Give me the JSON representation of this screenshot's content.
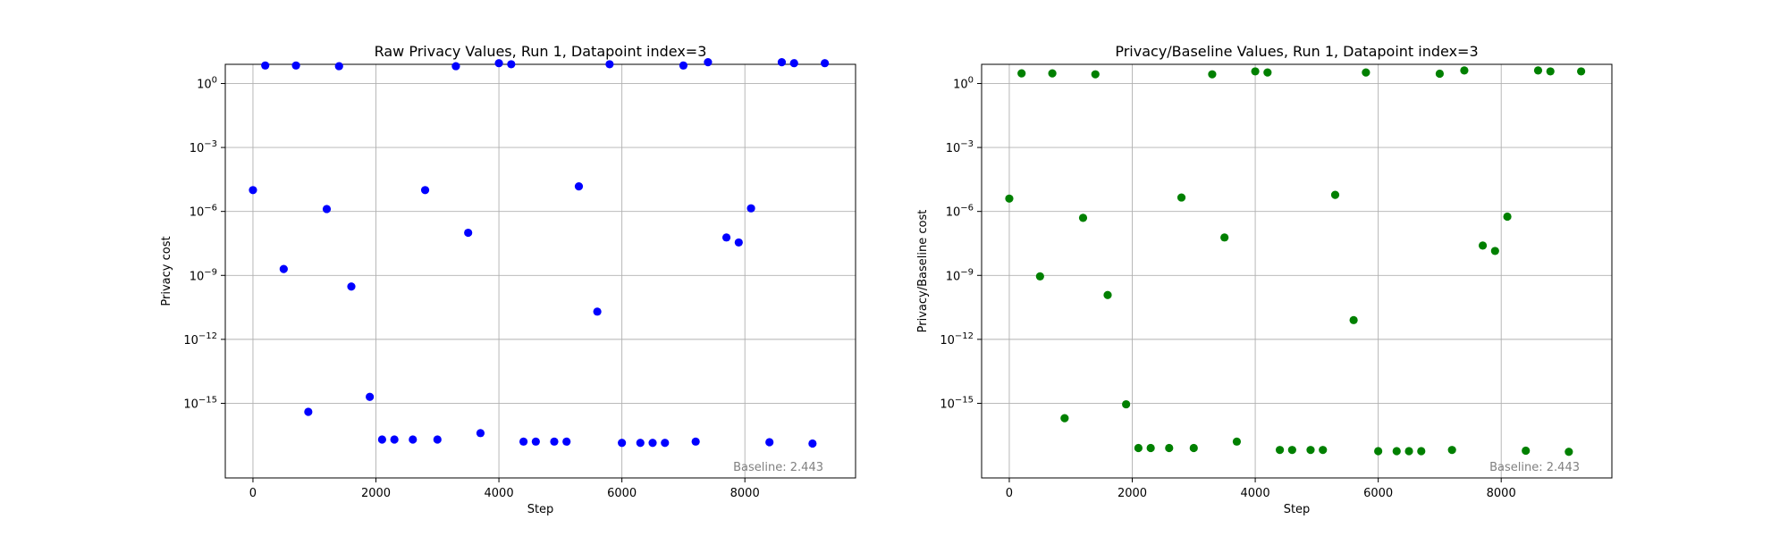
{
  "chart_data": [
    {
      "type": "scatter",
      "title": "Raw Privacy Values, Run 1, Datapoint index=3",
      "xlabel": "Step",
      "ylabel": "Privacy cost",
      "yscale": "log",
      "grid": true,
      "xlim": [
        -450,
        9800
      ],
      "ylim_exponent": [
        -18.5,
        0.9
      ],
      "xticks": [
        0,
        2000,
        4000,
        6000,
        8000
      ],
      "xtick_labels": [
        "0",
        "2000",
        "4000",
        "6000",
        "8000"
      ],
      "yticks_exponent": [
        0,
        -3,
        -6,
        -9,
        -12,
        -15
      ],
      "ytick_labels": [
        "10^0",
        "10^-3",
        "10^-6",
        "10^-9",
        "10^-12",
        "10^-15"
      ],
      "marker_color": "#0000ff",
      "annotation": "Baseline: 2.443",
      "annotation_color": "#808080",
      "series": [
        {
          "x": [
            0,
            200,
            500,
            700,
            900,
            1200,
            1400,
            1600,
            1900,
            2100,
            2300,
            2600,
            2800,
            3000,
            3300,
            3500,
            3700,
            4000,
            4200,
            4400,
            4600,
            4900,
            5100,
            5300,
            5600,
            5800,
            6000,
            6300,
            6500,
            6700,
            7000,
            7200,
            7400,
            7700,
            7900,
            8100,
            8400,
            8600,
            8800,
            9100,
            9300
          ],
          "y": [
            "1e-5",
            "7",
            "2e-9",
            "7",
            "4e-16",
            "1.3e-6",
            "6.5",
            "3e-10",
            "2e-15",
            "2e-17",
            "2e-17",
            "2e-17",
            "1e-5",
            "2e-17",
            "6.5",
            "1e-7",
            "4e-17",
            "9",
            "8",
            "1.6e-17",
            "1.6e-17",
            "1.6e-17",
            "1.6e-17",
            "1.5e-5",
            "2e-11",
            "8",
            "1.4e-17",
            "1.4e-17",
            "1.4e-17",
            "1.4e-17",
            "7",
            "1.6e-17",
            "10",
            "6e-8",
            "3.5e-8",
            "1.4e-6",
            "1.5e-17",
            "10",
            "9",
            "1.3e-17",
            "9"
          ]
        }
      ]
    },
    {
      "type": "scatter",
      "title": "Privacy/Baseline Values, Run 1, Datapoint index=3",
      "xlabel": "Step",
      "ylabel": "Privacy/Baseline cost",
      "yscale": "log",
      "grid": true,
      "xlim": [
        -450,
        9800
      ],
      "ylim_exponent": [
        -18.5,
        0.9
      ],
      "xticks": [
        0,
        2000,
        4000,
        6000,
        8000
      ],
      "xtick_labels": [
        "0",
        "2000",
        "4000",
        "6000",
        "8000"
      ],
      "yticks_exponent": [
        0,
        -3,
        -6,
        -9,
        -12,
        -15
      ],
      "ytick_labels": [
        "10^0",
        "10^-3",
        "10^-6",
        "10^-9",
        "10^-12",
        "10^-15"
      ],
      "marker_color": "#008000",
      "annotation": "Baseline: 2.443",
      "annotation_color": "#808080",
      "series": [
        {
          "x": [
            0,
            200,
            500,
            700,
            900,
            1200,
            1400,
            1600,
            1900,
            2100,
            2300,
            2600,
            2800,
            3000,
            3300,
            3500,
            3700,
            4000,
            4200,
            4400,
            4600,
            4900,
            5100,
            5300,
            5600,
            5800,
            6000,
            6300,
            6500,
            6700,
            7000,
            7200,
            7400,
            7700,
            7900,
            8100,
            8400,
            8600,
            8800,
            9100,
            9300
          ],
          "y": [
            "4e-6",
            "3",
            "9e-10",
            "3",
            "2e-16",
            "5e-7",
            "2.7",
            "1.2e-10",
            "9e-16",
            "8e-18",
            "8e-18",
            "8e-18",
            "4.5e-6",
            "8e-18",
            "2.7",
            "6e-8",
            "1.6e-17",
            "3.7",
            "3.3",
            "6.5e-18",
            "6.5e-18",
            "6.5e-18",
            "6.5e-18",
            "6e-6",
            "8e-12",
            "3.3",
            "5.7e-18",
            "5.7e-18",
            "5.7e-18",
            "5.7e-18",
            "2.9",
            "6.5e-18",
            "4.1",
            "2.5e-8",
            "1.4e-8",
            "5.7e-7",
            "6e-18",
            "4.1",
            "3.7",
            "5.3e-18",
            "3.7"
          ]
        }
      ]
    }
  ]
}
